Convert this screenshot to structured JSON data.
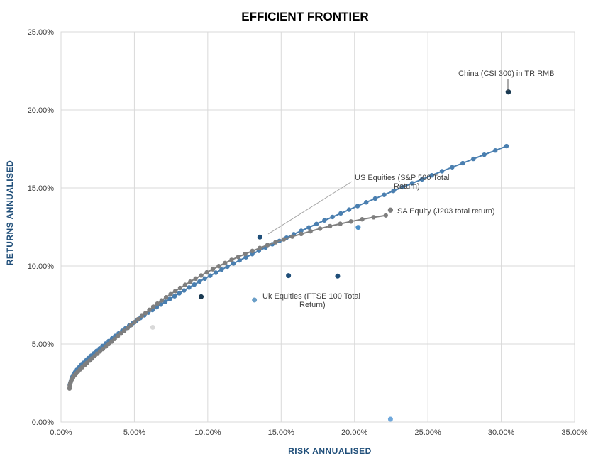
{
  "chart_data": {
    "type": "scatter",
    "title": "EFFICIENT FRONTIER",
    "xlabel": "RISK ANNUALISED",
    "ylabel": "RETURNS ANNUALISED",
    "xlim": [
      0,
      0.35
    ],
    "ylim": [
      0,
      0.25
    ],
    "x_ticks": [
      "0.00%",
      "5.00%",
      "10.00%",
      "15.00%",
      "20.00%",
      "25.00%",
      "30.00%",
      "35.00%"
    ],
    "y_ticks": [
      "0.00%",
      "5.00%",
      "10.00%",
      "15.00%",
      "20.00%",
      "25.00%"
    ],
    "grid": true,
    "series": [
      {
        "color": "#4a7fb0",
        "style": "line-markers",
        "x": [
          0.006,
          0.0063,
          0.0067,
          0.0072,
          0.0078,
          0.0086,
          0.0096,
          0.0108,
          0.0122,
          0.0137,
          0.0153,
          0.017,
          0.0188,
          0.0206,
          0.0224,
          0.0243,
          0.0263,
          0.0283,
          0.0304,
          0.0326,
          0.0348,
          0.037,
          0.0393,
          0.0417,
          0.044,
          0.0465,
          0.049,
          0.0515,
          0.0541,
          0.0568,
          0.0595,
          0.0623,
          0.0652,
          0.0681,
          0.0711,
          0.0742,
          0.0774,
          0.0806,
          0.0839,
          0.0873,
          0.0908,
          0.0944,
          0.098,
          0.1017,
          0.1055,
          0.1094,
          0.1134,
          0.1175,
          0.1217,
          0.126,
          0.1303,
          0.1348,
          0.1394,
          0.144,
          0.1488,
          0.1537,
          0.1586,
          0.1637,
          0.1689,
          0.1741,
          0.1795,
          0.185,
          0.1906,
          0.1963,
          0.2021,
          0.208,
          0.2141,
          0.2202,
          0.2265,
          0.2328,
          0.2393,
          0.246,
          0.2527,
          0.2596,
          0.2666,
          0.2738,
          0.281,
          0.2884,
          0.296,
          0.3036
        ],
        "y": [
          0.0238,
          0.0248,
          0.026,
          0.0275,
          0.029,
          0.0305,
          0.032,
          0.0335,
          0.035,
          0.0365,
          0.038,
          0.0395,
          0.041,
          0.0425,
          0.044,
          0.0456,
          0.0471,
          0.0487,
          0.0503,
          0.0519,
          0.0536,
          0.0552,
          0.0568,
          0.0585,
          0.0601,
          0.0618,
          0.0634,
          0.065,
          0.0667,
          0.0684,
          0.0701,
          0.0718,
          0.0736,
          0.0753,
          0.0771,
          0.0789,
          0.0806,
          0.0825,
          0.0843,
          0.0862,
          0.0881,
          0.09,
          0.0919,
          0.0938,
          0.0957,
          0.0977,
          0.0996,
          0.1016,
          0.1036,
          0.1056,
          0.1076,
          0.1097,
          0.1118,
          0.1139,
          0.116,
          0.1181,
          0.1203,
          0.1225,
          0.1247,
          0.1269,
          0.1292,
          0.1314,
          0.1337,
          0.1361,
          0.1384,
          0.1408,
          0.1432,
          0.1456,
          0.1481,
          0.1505,
          0.153,
          0.1555,
          0.1581,
          0.1607,
          0.1633,
          0.1659,
          0.1686,
          0.1713,
          0.174,
          0.1768
        ]
      },
      {
        "color": "#7f7f7f",
        "style": "line-markers",
        "x": [
          0.0058,
          0.006,
          0.0063,
          0.0068,
          0.0074,
          0.0082,
          0.0092,
          0.0104,
          0.0117,
          0.0131,
          0.0146,
          0.0162,
          0.0178,
          0.0195,
          0.0212,
          0.023,
          0.0248,
          0.0266,
          0.0285,
          0.0305,
          0.0325,
          0.0345,
          0.0366,
          0.0387,
          0.0409,
          0.0431,
          0.0454,
          0.0477,
          0.0501,
          0.0525,
          0.055,
          0.0576,
          0.0602,
          0.0629,
          0.0657,
          0.0686,
          0.0716,
          0.0747,
          0.0779,
          0.0812,
          0.0846,
          0.0881,
          0.0917,
          0.0955,
          0.0994,
          0.1034,
          0.1075,
          0.1118,
          0.1162,
          0.1208,
          0.1255,
          0.1304,
          0.1355,
          0.1407,
          0.1462,
          0.1518,
          0.1576,
          0.1637,
          0.17,
          0.1765,
          0.1833,
          0.1903,
          0.1976,
          0.2052,
          0.213,
          0.2213
        ],
        "y": [
          0.0215,
          0.0232,
          0.0247,
          0.026,
          0.0273,
          0.0286,
          0.0299,
          0.0312,
          0.0325,
          0.0338,
          0.0352,
          0.0366,
          0.038,
          0.0394,
          0.0408,
          0.0423,
          0.0438,
          0.0453,
          0.0468,
          0.0484,
          0.05,
          0.0516,
          0.0533,
          0.055,
          0.0567,
          0.0585,
          0.0603,
          0.0621,
          0.064,
          0.0659,
          0.0679,
          0.0699,
          0.0719,
          0.0739,
          0.0759,
          0.0779,
          0.0799,
          0.0819,
          0.0839,
          0.0859,
          0.0879,
          0.0899,
          0.0919,
          0.0939,
          0.0959,
          0.0979,
          0.0999,
          0.1019,
          0.1039,
          0.1058,
          0.1077,
          0.1096,
          0.1115,
          0.1134,
          0.1152,
          0.117,
          0.1188,
          0.1205,
          0.1222,
          0.1239,
          0.1255,
          0.127,
          0.1285,
          0.1299,
          0.1312,
          0.1324
        ]
      }
    ],
    "frontier_ends": [
      {
        "x": 0.3047,
        "y": 0.2115,
        "color": "#1a3a52"
      },
      {
        "x": 0.2245,
        "y": 0.1358,
        "color": "#7f7f7f"
      }
    ],
    "asset_points": [
      {
        "name": "China (CSI 300) in TR RMB",
        "x": 0.305,
        "y": 0.2115,
        "color": "#1a3a52"
      },
      {
        "name": "SA Equity (J203 total return)",
        "x": 0.2245,
        "y": 0.1358,
        "color": "#7f7f7f"
      },
      {
        "name": "US Equities (S&P 500 Total Return)",
        "x": 0.1355,
        "y": 0.1185,
        "color": "#1f4e79"
      },
      {
        "name": "Uk Equities (FTSE 100 Total Return)",
        "x": 0.1318,
        "y": 0.0782,
        "color": "#6a9ec7"
      },
      {
        "name": "",
        "x": 0.0955,
        "y": 0.0803,
        "color": "#1a3a52"
      },
      {
        "name": "",
        "x": 0.155,
        "y": 0.0938,
        "color": "#1f4e79"
      },
      {
        "name": "",
        "x": 0.1885,
        "y": 0.0935,
        "color": "#1f4e79"
      },
      {
        "name": "",
        "x": 0.2025,
        "y": 0.1247,
        "color": "#4a8ec7"
      },
      {
        "name": "",
        "x": 0.0625,
        "y": 0.0607,
        "color": "#d9d9d9"
      },
      {
        "name": "",
        "x": 0.2245,
        "y": 0.0018,
        "color": "#6fa8dc"
      }
    ],
    "annotations": [
      {
        "lines": [
          "China (CSI 300) in TR RMB"
        ],
        "anchor": "start"
      },
      {
        "lines": [
          "US Equities (S&P 500 Total",
          "Return)"
        ],
        "anchor": "start"
      },
      {
        "lines": [
          "SA Equity (J203 total return)"
        ],
        "anchor": "start"
      },
      {
        "lines": [
          "Uk Equities (FTSE 100 Total",
          "Return)"
        ],
        "anchor": "start"
      }
    ]
  }
}
